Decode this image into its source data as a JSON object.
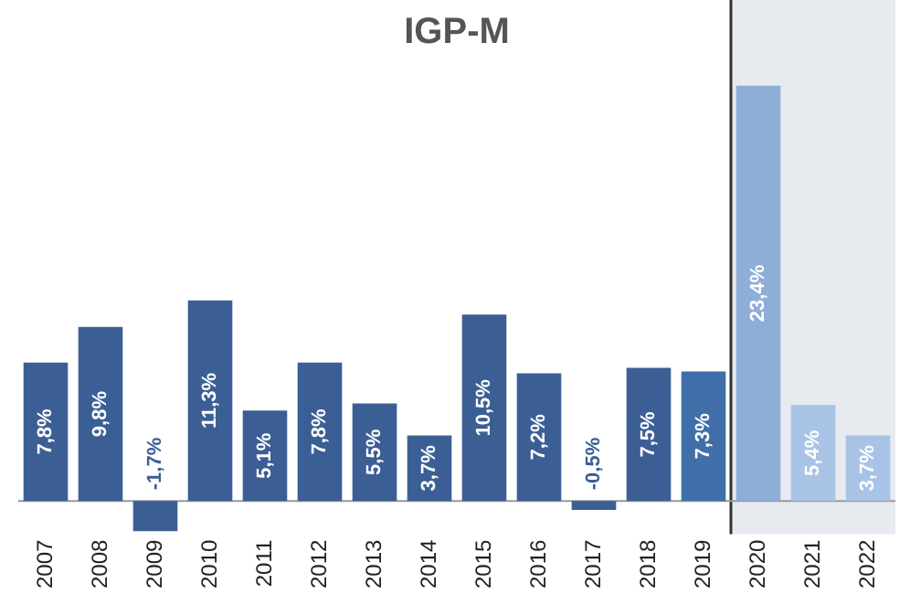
{
  "chart_data": {
    "type": "bar",
    "title": "IGP-M",
    "categories": [
      "2007",
      "2008",
      "2009",
      "2010",
      "2011",
      "2012",
      "2013",
      "2014",
      "2015",
      "2016",
      "2017",
      "2018",
      "2019",
      "2020",
      "2021",
      "2022"
    ],
    "values": [
      7.8,
      9.8,
      -1.7,
      11.3,
      5.1,
      7.8,
      5.5,
      3.7,
      10.5,
      7.2,
      -0.5,
      7.5,
      7.3,
      23.4,
      5.4,
      3.7
    ],
    "value_labels": [
      "7,8%",
      "9,8%",
      "-1,7%",
      "11,3%",
      "5,1%",
      "7,8%",
      "5,5%",
      "3,7%",
      "10,5%",
      "7,2%",
      "-0,5%",
      "7,5%",
      "7,3%",
      "23,4%",
      "5,4%",
      "3,7%"
    ],
    "colors": [
      "#3b5f95",
      "#3b5f95",
      "#3b5f95",
      "#3b5f95",
      "#3b5f95",
      "#3b5f95",
      "#3b5f95",
      "#3b5f95",
      "#3b5f95",
      "#3b5f95",
      "#3b5f95",
      "#3b5f95",
      "#3f6ea8",
      "#8eaed8",
      "#a8c3e6",
      "#a8c3e6"
    ],
    "bands": [
      {
        "axis": "x",
        "from": "2020",
        "to": "2022",
        "color": "#e7eaef"
      }
    ],
    "grid": false,
    "legend": false
  }
}
